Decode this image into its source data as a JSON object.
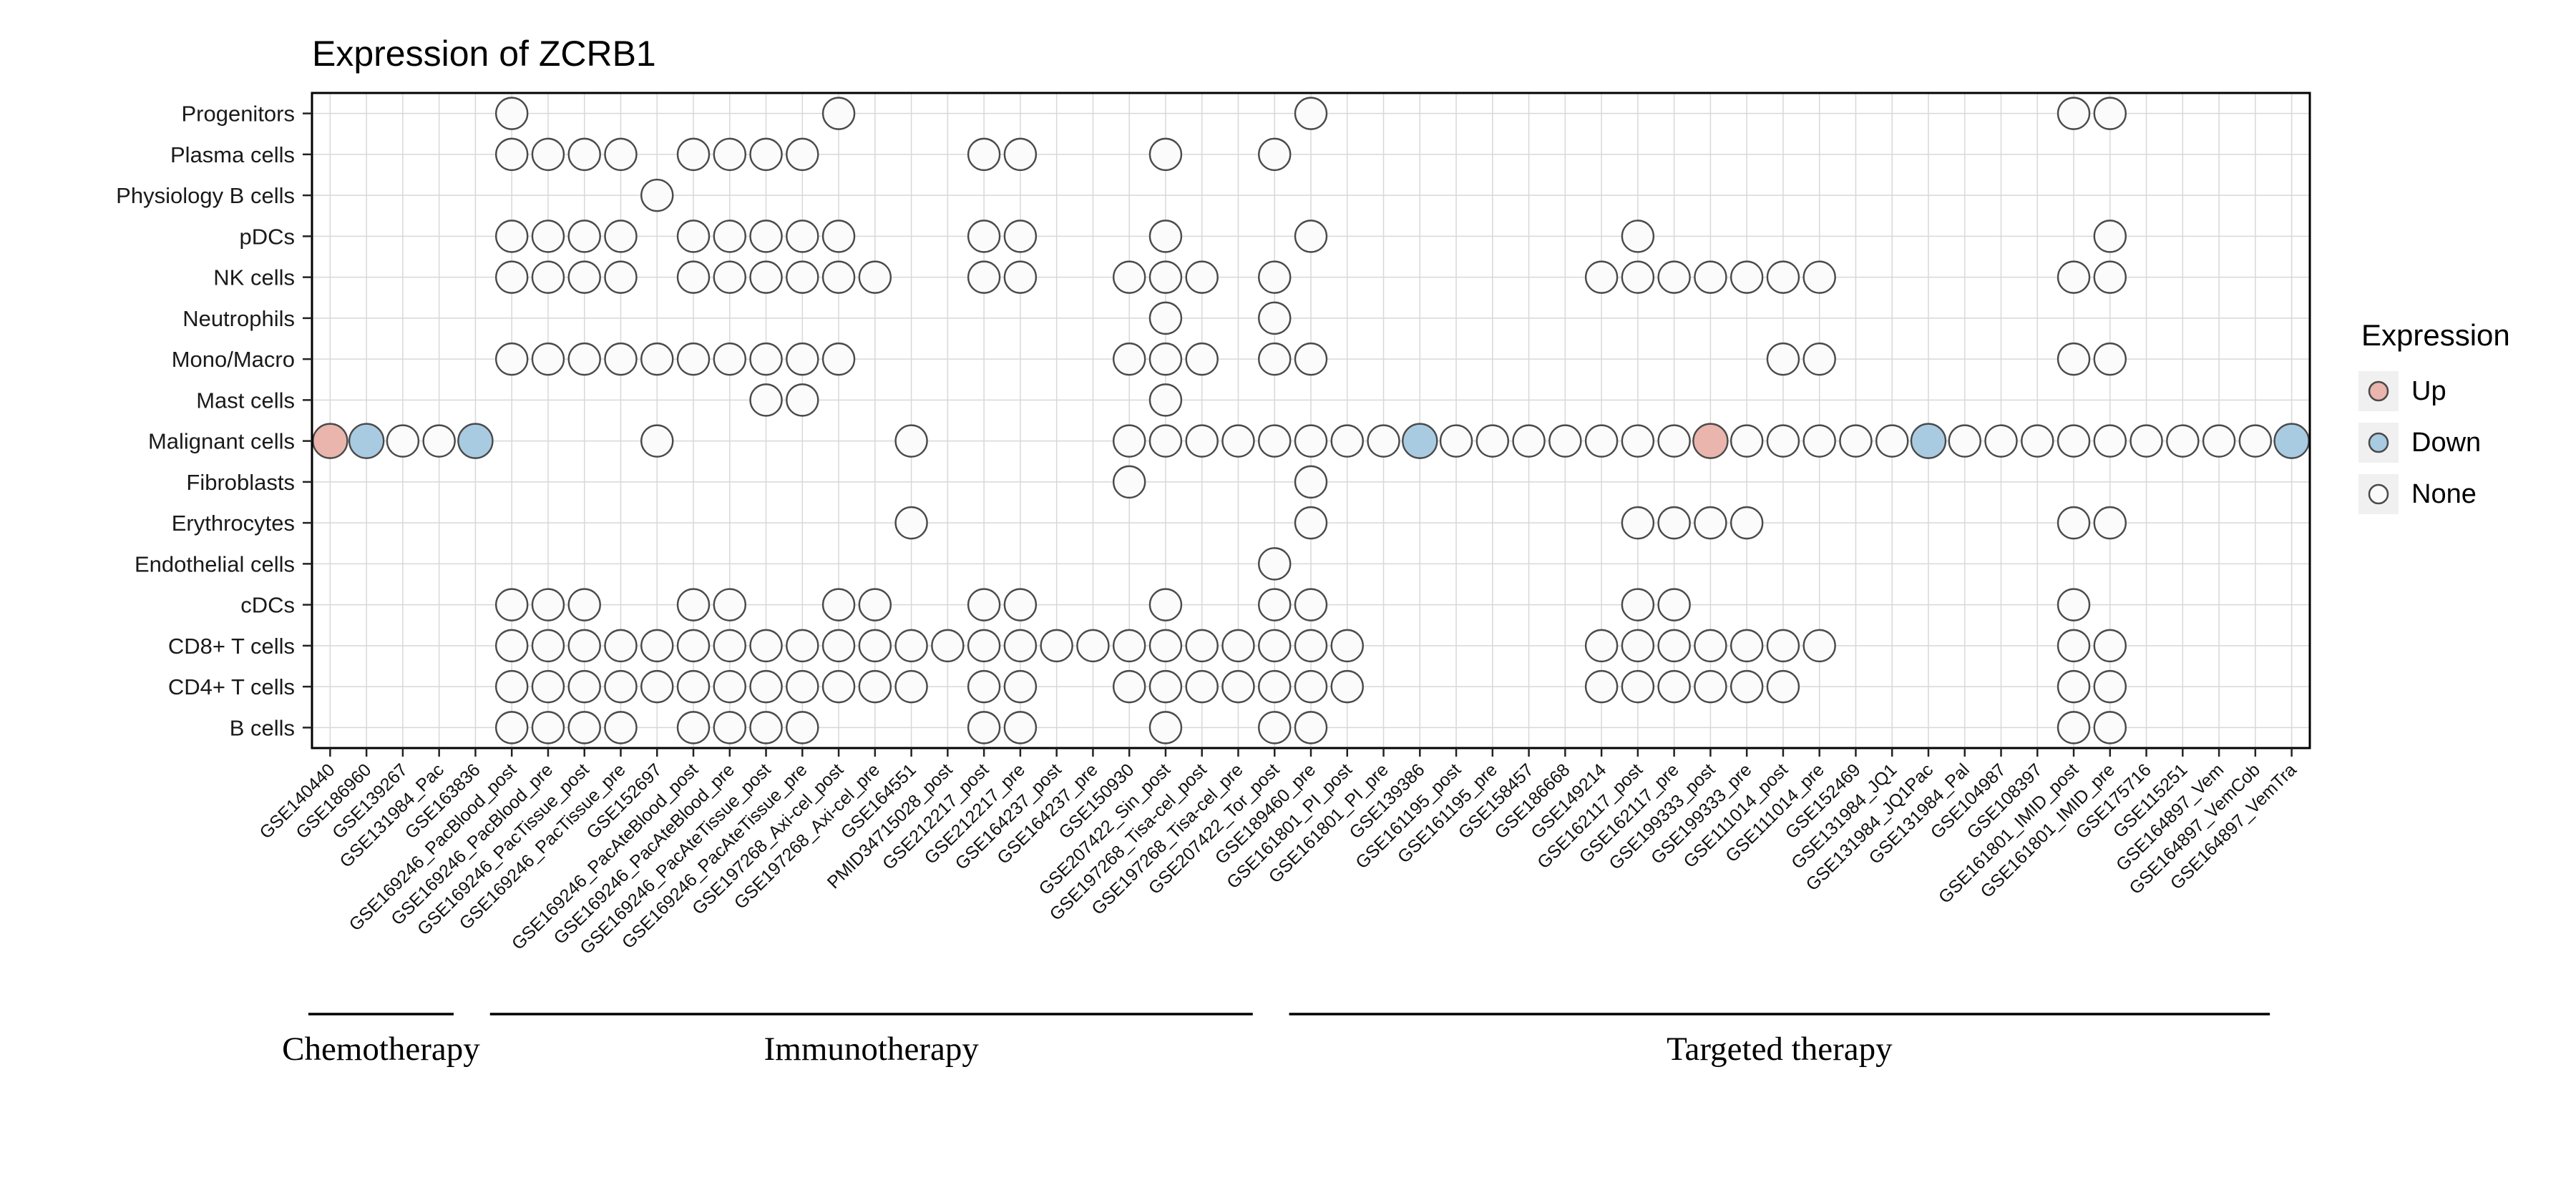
{
  "chart_data": {
    "type": "heatmap",
    "title": "Expression of ZCRB1",
    "legend": {
      "title": "Expression",
      "items": [
        {
          "label": "Up"
        },
        {
          "label": "Down"
        },
        {
          "label": "None"
        }
      ]
    },
    "colors": {
      "Up": "#e9b5ad",
      "Down": "#a8cbe2",
      "None": "#fbfbfb"
    },
    "rows": [
      "Progenitors",
      "Plasma cells",
      "Physiology B cells",
      "pDCs",
      "NK cells",
      "Neutrophils",
      "Mono/Macro",
      "Mast cells",
      "Malignant cells",
      "Fibroblasts",
      "Erythrocytes",
      "Endothelial cells",
      "cDCs",
      "CD8+ T cells",
      "CD4+ T cells",
      "B cells"
    ],
    "columns": [
      "GSE140440",
      "GSE186960",
      "GSE139267",
      "GSE131984_Pac",
      "GSE163836",
      "GSE169246_PacBlood_post",
      "GSE169246_PacBlood_pre",
      "GSE169246_PacTissue_post",
      "GSE169246_PacTissue_pre",
      "GSE152697",
      "GSE169246_PacAteBlood_post",
      "GSE169246_PacAteBlood_pre",
      "GSE169246_PacAteTissue_post",
      "GSE169246_PacAteTissue_pre",
      "GSE197268_Axi-cel_post",
      "GSE197268_Axi-cel_pre",
      "GSE164551",
      "PMID34715028_post",
      "GSE212217_post",
      "GSE212217_pre",
      "GSE164237_post",
      "GSE164237_pre",
      "GSE150930",
      "GSE207422_Sin_post",
      "GSE197268_Tisa-cel_post",
      "GSE197268_Tisa-cel_pre",
      "GSE207422_Tor_post",
      "GSE189460_pre",
      "GSE161801_PI_post",
      "GSE161801_PI_pre",
      "GSE139386",
      "GSE161195_post",
      "GSE161195_pre",
      "GSE158457",
      "GSE186668",
      "GSE149214",
      "GSE162117_post",
      "GSE162117_pre",
      "GSE199333_post",
      "GSE199333_pre",
      "GSE111014_post",
      "GSE111014_pre",
      "GSE152469",
      "GSE131984_JQ1",
      "GSE131984_JQ1Pac",
      "GSE131984_Pal",
      "GSE104987",
      "GSE108397",
      "GSE161801_IMID_post",
      "GSE161801_IMID_pre",
      "GSE175716",
      "GSE115251",
      "GSE164897_Vem",
      "GSE164897_VemCob",
      "GSE164897_VemTra"
    ],
    "groups": [
      {
        "label": "Chemotherapy",
        "start": 1,
        "end": 5
      },
      {
        "label": "Immunotherapy",
        "start": 6,
        "end": 27
      },
      {
        "label": "Targeted therapy",
        "start": 28,
        "end": 55
      }
    ],
    "cells": [
      {
        "row": "Progenitors",
        "cols": [
          6,
          15,
          28,
          49,
          50
        ]
      },
      {
        "row": "Plasma cells",
        "cols": [
          6,
          7,
          8,
          9,
          11,
          12,
          13,
          14,
          19,
          20,
          24,
          27
        ]
      },
      {
        "row": "Physiology B cells",
        "cols": [
          10
        ]
      },
      {
        "row": "pDCs",
        "cols": [
          6,
          7,
          8,
          9,
          11,
          12,
          13,
          14,
          15,
          19,
          20,
          24,
          28,
          37,
          50
        ]
      },
      {
        "row": "NK cells",
        "cols": [
          6,
          7,
          8,
          9,
          11,
          12,
          13,
          14,
          15,
          16,
          19,
          20,
          23,
          24,
          25,
          27,
          36,
          37,
          38,
          39,
          40,
          41,
          42,
          49,
          50
        ]
      },
      {
        "row": "Neutrophils",
        "cols": [
          24,
          27
        ]
      },
      {
        "row": "Mono/Macro",
        "cols": [
          6,
          7,
          8,
          9,
          10,
          11,
          12,
          13,
          14,
          15,
          23,
          24,
          25,
          27,
          28,
          41,
          42,
          49,
          50
        ]
      },
      {
        "row": "Mast cells",
        "cols": [
          13,
          14,
          24
        ]
      },
      {
        "row": "Malignant cells",
        "cols": [
          1,
          2,
          3,
          4,
          5,
          10,
          17,
          23,
          24,
          25,
          26,
          27,
          28,
          29,
          30,
          31,
          32,
          33,
          34,
          35,
          36,
          37,
          38,
          39,
          40,
          41,
          42,
          43,
          44,
          45,
          46,
          47,
          48,
          49,
          50,
          51,
          52,
          53,
          54,
          55
        ]
      },
      {
        "row": "Fibroblasts",
        "cols": [
          23,
          28
        ]
      },
      {
        "row": "Erythrocytes",
        "cols": [
          17,
          28,
          37,
          38,
          39,
          40,
          49,
          50
        ]
      },
      {
        "row": "Endothelial cells",
        "cols": [
          27
        ]
      },
      {
        "row": "cDCs",
        "cols": [
          6,
          7,
          8,
          11,
          12,
          15,
          16,
          19,
          20,
          24,
          27,
          28,
          37,
          38,
          49
        ]
      },
      {
        "row": "CD8+ T cells",
        "cols": [
          6,
          7,
          8,
          9,
          10,
          11,
          12,
          13,
          14,
          15,
          16,
          17,
          18,
          19,
          20,
          21,
          22,
          23,
          24,
          25,
          26,
          27,
          28,
          29,
          36,
          37,
          38,
          39,
          40,
          41,
          42,
          49,
          50
        ]
      },
      {
        "row": "CD4+ T cells",
        "cols": [
          6,
          7,
          8,
          9,
          10,
          11,
          12,
          13,
          14,
          15,
          16,
          17,
          19,
          20,
          23,
          24,
          25,
          26,
          27,
          28,
          29,
          36,
          37,
          38,
          39,
          40,
          41,
          49,
          50
        ]
      },
      {
        "row": "B cells",
        "cols": [
          6,
          7,
          8,
          9,
          11,
          12,
          13,
          14,
          19,
          20,
          24,
          27,
          28,
          49,
          50
        ]
      }
    ],
    "colored": [
      {
        "row": "Malignant cells",
        "col": 1,
        "state": "Up"
      },
      {
        "row": "Malignant cells",
        "col": 2,
        "state": "Down"
      },
      {
        "row": "Malignant cells",
        "col": 5,
        "state": "Down"
      },
      {
        "row": "Malignant cells",
        "col": 31,
        "state": "Down"
      },
      {
        "row": "Malignant cells",
        "col": 39,
        "state": "Up"
      },
      {
        "row": "Malignant cells",
        "col": 45,
        "state": "Down"
      },
      {
        "row": "Malignant cells",
        "col": 55,
        "state": "Down"
      }
    ]
  }
}
